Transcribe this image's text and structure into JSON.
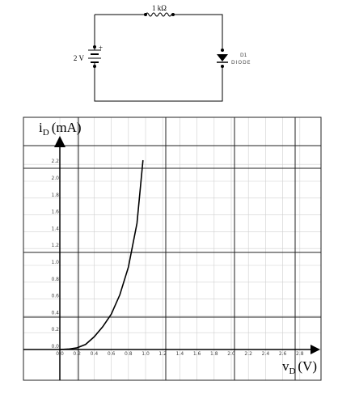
{
  "circuit": {
    "resistor_label": "1 kΩ",
    "source_label": "2 V",
    "source_polarity": "+",
    "diode_name": "D1",
    "diode_type": "DIODE"
  },
  "chart_data": {
    "type": "line",
    "y_label": {
      "main": "i",
      "sub": "D",
      "unit": "(mA)"
    },
    "x_label": {
      "main": "v",
      "sub": "D",
      "unit": "(V)"
    },
    "x": [
      0,
      0.1,
      0.2,
      0.3,
      0.4,
      0.5,
      0.6,
      0.7,
      0.8,
      0.9,
      0.97
    ],
    "values": [
      0,
      0.005,
      0.02,
      0.06,
      0.15,
      0.27,
      0.42,
      0.65,
      0.98,
      1.5,
      2.25
    ],
    "color": "#000000",
    "xlim": [
      0,
      3.0
    ],
    "ylim": [
      0,
      2.5
    ],
    "xticks": [
      {
        "value": 0,
        "label": "0.0"
      },
      {
        "value": 0.2,
        "label": "0.2"
      },
      {
        "value": 0.4,
        "label": "0.4"
      },
      {
        "value": 0.6,
        "label": "0.6"
      },
      {
        "value": 0.8,
        "label": "0.8"
      },
      {
        "value": 1.0,
        "label": "1.0"
      },
      {
        "value": 1.2,
        "label": "1.2"
      },
      {
        "value": 1.4,
        "label": "1.4"
      },
      {
        "value": 1.6,
        "label": "1.6"
      },
      {
        "value": 1.8,
        "label": "1.8"
      },
      {
        "value": 2.0,
        "label": "2.0"
      },
      {
        "value": 2.2,
        "label": "2.2"
      },
      {
        "value": 2.4,
        "label": "2.4"
      },
      {
        "value": 2.6,
        "label": "2.6"
      },
      {
        "value": 2.8,
        "label": "2.8"
      }
    ],
    "yticks": [
      {
        "value": 0,
        "label": "0.0"
      },
      {
        "value": 0.2,
        "label": "0.2"
      },
      {
        "value": 0.4,
        "label": "0.4"
      },
      {
        "value": 0.6,
        "label": "0.6"
      },
      {
        "value": 0.8,
        "label": "0.8"
      },
      {
        "value": 1.0,
        "label": "1.0"
      },
      {
        "value": 1.2,
        "label": "1.2"
      },
      {
        "value": 1.4,
        "label": "1.4"
      },
      {
        "value": 1.6,
        "label": "1.6"
      },
      {
        "value": 1.8,
        "label": "1.8"
      },
      {
        "value": 2.0,
        "label": "2.0"
      },
      {
        "value": 2.2,
        "label": "2.2"
      }
    ],
    "grid": true
  }
}
